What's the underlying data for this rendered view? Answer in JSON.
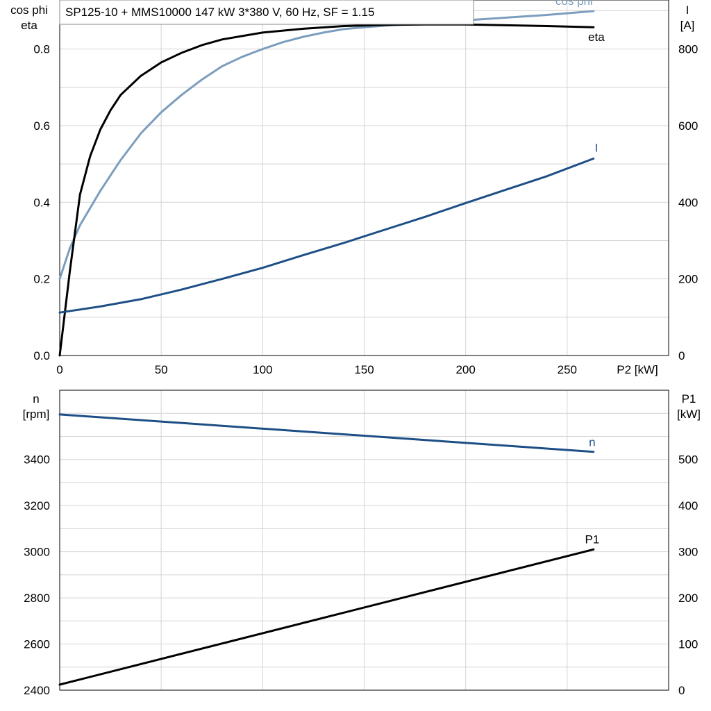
{
  "title": "SP125-10 + MMS10000   147 kW   3*380 V, 60 Hz, SF = 1.15",
  "chart_data": [
    {
      "type": "line",
      "xlabel": "P2 [kW]",
      "x_ticks": [
        0,
        50,
        100,
        150,
        200,
        250
      ],
      "xlim": [
        0,
        300
      ],
      "left_axis": {
        "label_lines": [
          "cos phi",
          "eta"
        ],
        "ylim": [
          0,
          1.0
        ],
        "ticks": [
          0.0,
          0.2,
          0.4,
          0.6,
          0.8
        ],
        "tick_labels": [
          "0.0",
          "0.2",
          "0.4",
          "0.6",
          "0.8"
        ]
      },
      "right_axis": {
        "label_lines": [
          "I",
          "[A]"
        ],
        "ylim": [
          0,
          1000
        ],
        "ticks": [
          0,
          200,
          400,
          600,
          800
        ],
        "tick_labels": [
          "0",
          "200",
          "400",
          "600",
          "800"
        ]
      },
      "grid": true,
      "series": [
        {
          "name": "cos phi",
          "axis": "left",
          "color": "#7c9dbd",
          "x": [
            0,
            5,
            10,
            20,
            30,
            40,
            50,
            60,
            70,
            80,
            90,
            100,
            110,
            120,
            130,
            140,
            150,
            160,
            180,
            200,
            220,
            240,
            263
          ],
          "y": [
            0.2,
            0.28,
            0.34,
            0.43,
            0.51,
            0.58,
            0.635,
            0.68,
            0.72,
            0.755,
            0.78,
            0.8,
            0.818,
            0.832,
            0.843,
            0.852,
            0.857,
            0.861,
            0.868,
            0.875,
            0.882,
            0.889,
            0.899
          ]
        },
        {
          "name": "eta",
          "axis": "left",
          "color": "#000000",
          "x": [
            0,
            5,
            10,
            15,
            20,
            25,
            30,
            40,
            50,
            60,
            70,
            80,
            100,
            120,
            140,
            160,
            180,
            200,
            220,
            240,
            263
          ],
          "y": [
            0.0,
            0.22,
            0.42,
            0.52,
            0.59,
            0.64,
            0.68,
            0.73,
            0.765,
            0.79,
            0.81,
            0.825,
            0.843,
            0.853,
            0.86,
            0.863,
            0.864,
            0.864,
            0.862,
            0.86,
            0.857
          ]
        },
        {
          "name": "I",
          "axis": "right",
          "color": "#1e4e86",
          "x": [
            0,
            20,
            40,
            60,
            80,
            100,
            120,
            140,
            160,
            180,
            200,
            220,
            240,
            263
          ],
          "y": [
            112,
            128,
            147,
            172,
            200,
            229,
            262,
            294,
            328,
            362,
            398,
            433,
            468,
            514
          ]
        }
      ]
    },
    {
      "type": "line",
      "x_ticks": [
        0,
        50,
        100,
        150,
        200,
        250
      ],
      "xlim": [
        0,
        300
      ],
      "left_axis": {
        "label_lines": [
          "n",
          "[rpm]"
        ],
        "ylim": [
          2400,
          3700
        ],
        "ticks": [
          2400,
          2600,
          2800,
          3000,
          3200,
          3400
        ],
        "tick_labels": [
          "2400",
          "2600",
          "2800",
          "3000",
          "3200",
          "3400"
        ]
      },
      "right_axis": {
        "label_lines": [
          "P1",
          "[kW]"
        ],
        "ylim": [
          0,
          650
        ],
        "ticks": [
          0,
          100,
          200,
          300,
          400,
          500
        ],
        "tick_labels": [
          "0",
          "100",
          "200",
          "300",
          "400",
          "500"
        ]
      },
      "grid": true,
      "series": [
        {
          "name": "n",
          "axis": "left",
          "color": "#1e4e86",
          "x": [
            0,
            263
          ],
          "y": [
            3595,
            3433
          ]
        },
        {
          "name": "P1",
          "axis": "right",
          "color": "#000000",
          "x": [
            0,
            263
          ],
          "y": [
            12,
            305
          ]
        }
      ]
    }
  ]
}
